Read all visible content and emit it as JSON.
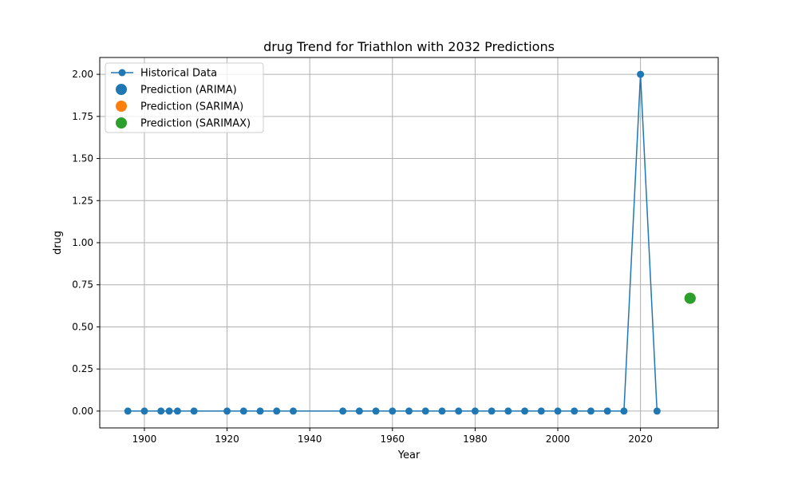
{
  "chart_data": {
    "type": "line",
    "title": "drug Trend for Triathlon with 2032 Predictions",
    "xlabel": "Year",
    "ylabel": "drug",
    "xlim": [
      1889.2,
      2038.8
    ],
    "ylim": [
      -0.1,
      2.1
    ],
    "xticks": [
      1900,
      1920,
      1940,
      1960,
      1980,
      2000,
      2020
    ],
    "yticks": [
      0.0,
      0.25,
      0.5,
      0.75,
      1.0,
      1.25,
      1.5,
      1.75,
      2.0
    ],
    "xtick_labels": [
      "1900",
      "1920",
      "1940",
      "1960",
      "1980",
      "2000",
      "2020"
    ],
    "ytick_labels": [
      "0.00",
      "0.25",
      "0.50",
      "0.75",
      "1.00",
      "1.25",
      "1.50",
      "1.75",
      "2.00"
    ],
    "grid": true,
    "legend_position": "upper-left",
    "series": [
      {
        "name": "Historical Data",
        "kind": "line-marker",
        "color": "#1f77b4",
        "x": [
          1896,
          1900,
          1904,
          1906,
          1908,
          1912,
          1920,
          1924,
          1928,
          1932,
          1936,
          1948,
          1952,
          1956,
          1960,
          1964,
          1968,
          1972,
          1976,
          1980,
          1984,
          1988,
          1992,
          1996,
          2000,
          2004,
          2008,
          2012,
          2016,
          2020,
          2024
        ],
        "y": [
          0,
          0,
          0,
          0,
          0,
          0,
          0,
          0,
          0,
          0,
          0,
          0,
          0,
          0,
          0,
          0,
          0,
          0,
          0,
          0,
          0,
          0,
          0,
          0,
          0,
          0,
          0,
          0,
          0,
          2,
          0
        ]
      },
      {
        "name": "Prediction (ARIMA)",
        "kind": "scatter",
        "color": "#1f77b4",
        "x": [
          2032
        ],
        "y": [
          0.67
        ]
      },
      {
        "name": "Prediction (SARIMA)",
        "kind": "scatter",
        "color": "#ff7f0e",
        "x": [
          2032
        ],
        "y": [
          0.67
        ]
      },
      {
        "name": "Prediction (SARIMAX)",
        "kind": "scatter",
        "color": "#2ca02c",
        "x": [
          2032
        ],
        "y": [
          0.67
        ]
      }
    ]
  }
}
